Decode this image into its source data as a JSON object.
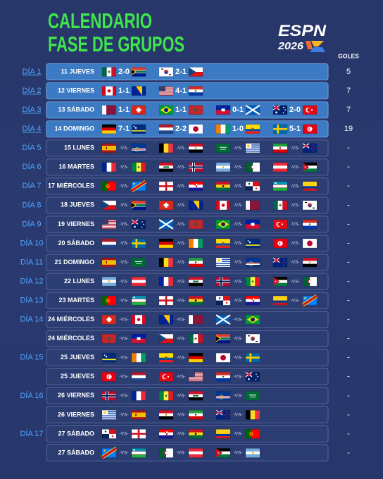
{
  "header": {
    "title": [
      "CALENDARIO",
      "FASE DE GRUPOS"
    ],
    "logo": {
      "brand": "ESPN",
      "year": "2026"
    }
  },
  "goals_header": "GOLES",
  "rows": [
    {
      "day": "DÍA 1",
      "date": "11 JUEVES",
      "matches": [
        "2-0",
        "2-1"
      ],
      "goals": 5
    },
    {
      "day": "DÍA 2",
      "date": "12 VIERNES",
      "matches": [
        "1-1",
        "4-1"
      ],
      "goals": 7
    },
    {
      "day": "DÍA 3",
      "date": "13 SÁBADO",
      "matches": [
        "1-1",
        "1-1",
        "0-1",
        "2-0"
      ],
      "goals": 7
    },
    {
      "day": "DÍA 4",
      "date": "14 DOMINGO",
      "matches": [
        "7-1",
        "2-2",
        "1-0",
        "5-1"
      ],
      "goals": 19
    },
    {
      "day": "DÍA 5",
      "date": "15 LUNES",
      "matches": [
        "-VS-",
        "-VS-",
        "-VS-",
        "-VS-"
      ],
      "goals": "-"
    },
    {
      "day": "DÍA 6",
      "date": "16 MARTES",
      "matches": [
        "-VS-",
        "-VS-",
        "-VS-",
        "-VS-"
      ],
      "goals": "-"
    },
    {
      "day": "DÍA 7",
      "date": "17 MIÉRCOLES",
      "matches": [
        "-VS-",
        "-VS-",
        "-VS-",
        "-VS-"
      ],
      "goals": "-"
    },
    {
      "day": "DÍA 8",
      "date": "18 JUEVES",
      "matches": [
        "-VS-",
        "-VS-",
        "-VS-",
        "-VS-"
      ],
      "goals": "-"
    },
    {
      "day": "DÍA 9",
      "date": "19 VIERNES",
      "matches": [
        "-VS-",
        "-VS-",
        "-VS-",
        "-VS-"
      ],
      "goals": "-"
    },
    {
      "day": "DÍA 10",
      "date": "20 SÁBADO",
      "matches": [
        "-VS-",
        "-VS-",
        "-VS-",
        "-VS-"
      ],
      "goals": "-"
    },
    {
      "day": "DÍA 11",
      "date": "21 DOMINGO",
      "matches": [
        "-VS-",
        "-VS-",
        "-VS-",
        "-VS-"
      ],
      "goals": "-"
    },
    {
      "day": "DÍA 12",
      "date": "22 LUNES",
      "matches": [
        "-VS-",
        "-VS-",
        "-VS-",
        "-VS-"
      ],
      "goals": "-"
    },
    {
      "day": "DÍA 13",
      "date": "23 MARTES",
      "matches": [
        "-VS-",
        "-VS-",
        "-VS-",
        "-VS-"
      ],
      "goals": "-"
    },
    {
      "day": "DÍA 14",
      "date": "24 MIÉRCOLES",
      "matches": [
        "-VS-",
        "-VS-",
        "-VS-"
      ],
      "goals": "-"
    },
    {
      "day": null,
      "date": "24 MIÉRCOLES",
      "matches": [
        "-VS-",
        "-VS-",
        "-VS-"
      ],
      "goals": "-"
    },
    {
      "day": "DÍA 15",
      "date": "25 JUEVES",
      "matches": [
        "-VS-",
        "-VS-",
        "-VS-"
      ],
      "goals": "-"
    },
    {
      "day": null,
      "date": "25 JUEVES",
      "matches": [
        "-VS-",
        "-VS-",
        "-VS-"
      ],
      "goals": "-"
    },
    {
      "day": "DÍA 16",
      "date": "26 VIERNES",
      "matches": [
        "-VS-",
        "-VS-",
        "-VS-"
      ],
      "goals": "-"
    },
    {
      "day": null,
      "date": "26 VIERNES",
      "matches": [
        "-VS-",
        "-VS-",
        "-VS-"
      ],
      "goals": "-"
    },
    {
      "day": "DÍA 17",
      "date": "27 SÁBADO",
      "matches": [
        "-VS-",
        "-VS-",
        "-VS-"
      ],
      "goals": "-"
    },
    {
      "day": null,
      "date": "27 SÁBADO",
      "matches": [
        "-VS-",
        "-VS-",
        "-VS-"
      ],
      "goals": "-"
    }
  ]
}
